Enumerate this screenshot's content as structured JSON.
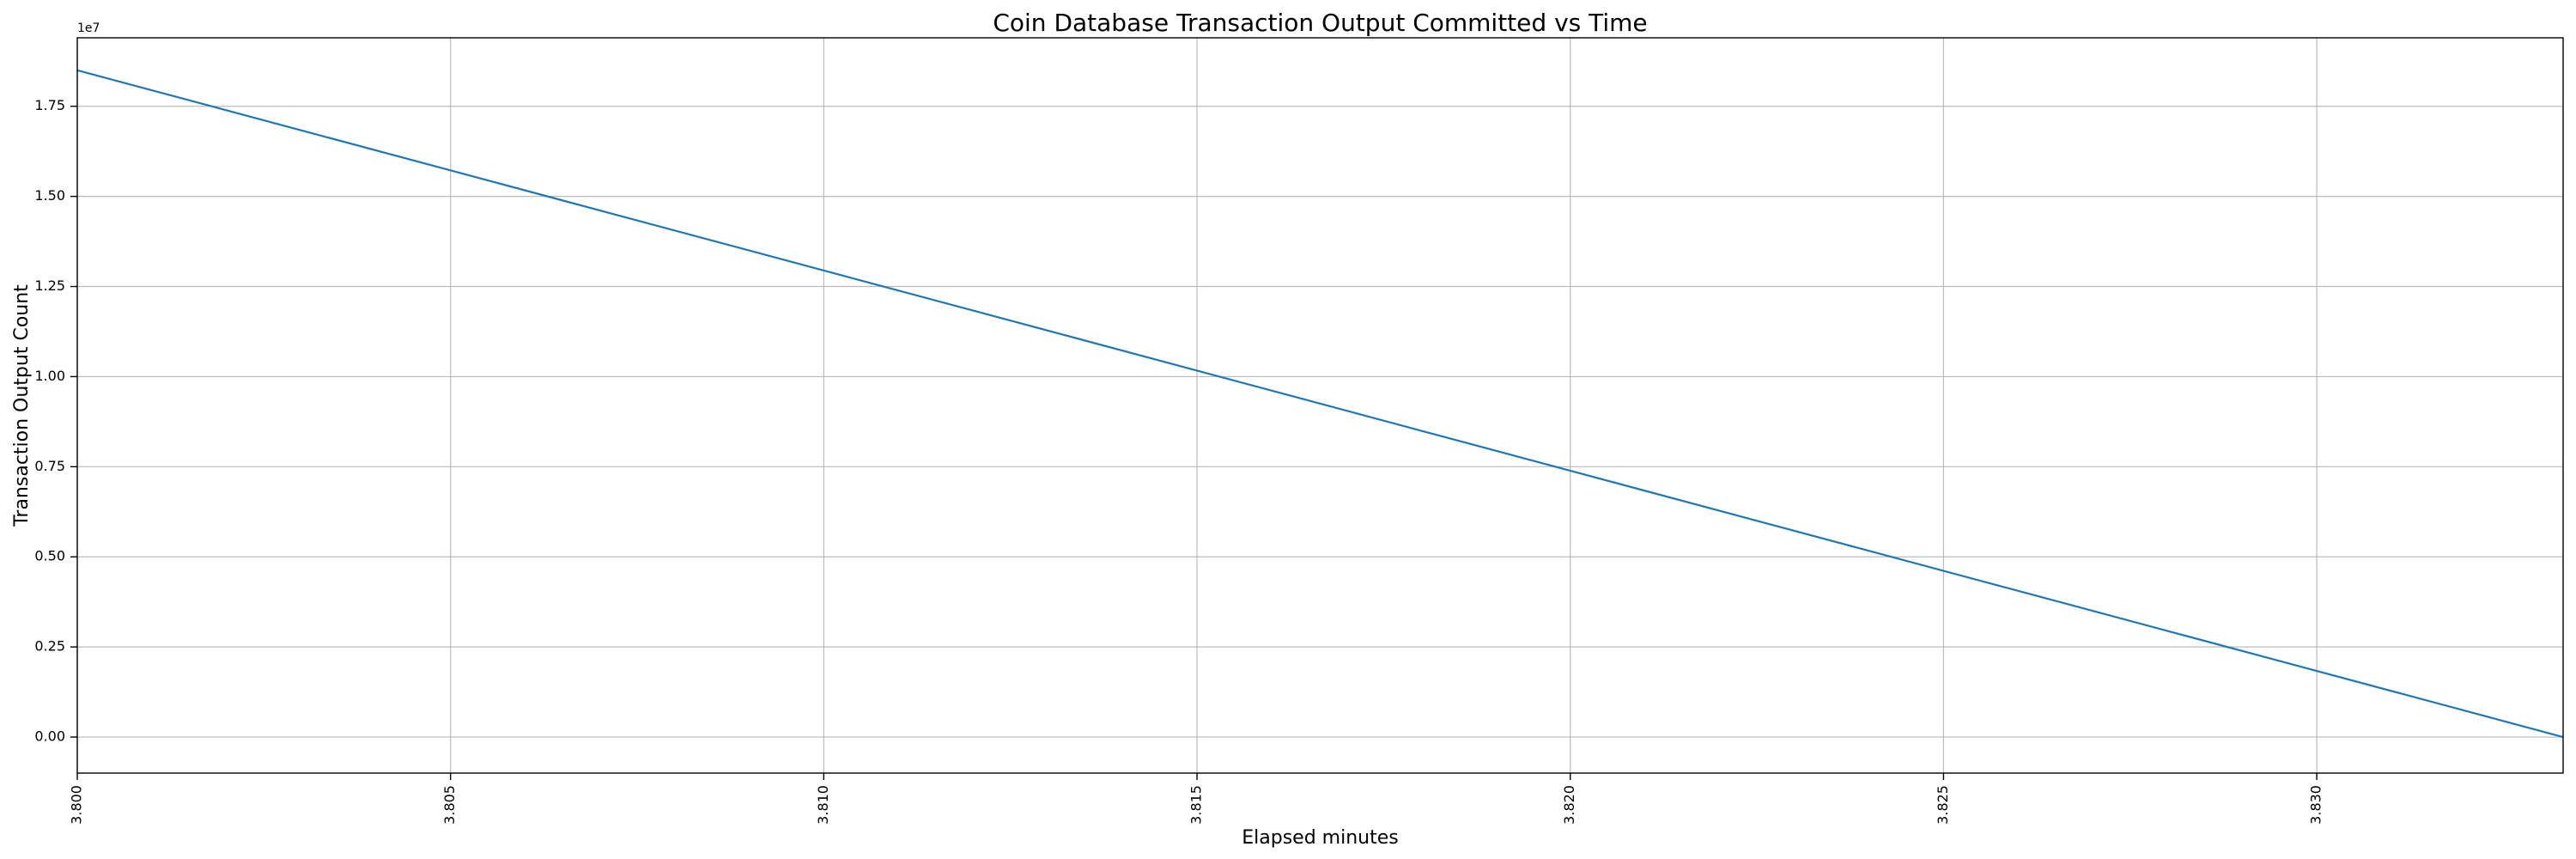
{
  "chart_data": {
    "type": "line",
    "title": "Coin Database Transaction Output Committed vs Time",
    "xlabel": "Elapsed minutes",
    "ylabel": "Transaction Output Count",
    "y_offset_label": "1e7",
    "xlim": [
      3.8,
      3.8333
    ],
    "ylim": [
      -1000000,
      19400000
    ],
    "x_ticks": [
      3.8,
      3.805,
      3.81,
      3.815,
      3.82,
      3.825,
      3.83
    ],
    "x_tick_labels": [
      "3.800",
      "3.805",
      "3.810",
      "3.815",
      "3.820",
      "3.825",
      "3.830"
    ],
    "y_ticks": [
      0,
      2500000,
      5000000,
      7500000,
      10000000,
      12500000,
      15000000,
      17500000
    ],
    "y_tick_labels": [
      "0.00",
      "0.25",
      "0.50",
      "0.75",
      "1.00",
      "1.25",
      "1.50",
      "1.75"
    ],
    "grid": true,
    "series": [
      {
        "color": "#1f77b4",
        "x": [
          3.8,
          3.8333
        ],
        "y": [
          18500000,
          0
        ]
      }
    ]
  }
}
